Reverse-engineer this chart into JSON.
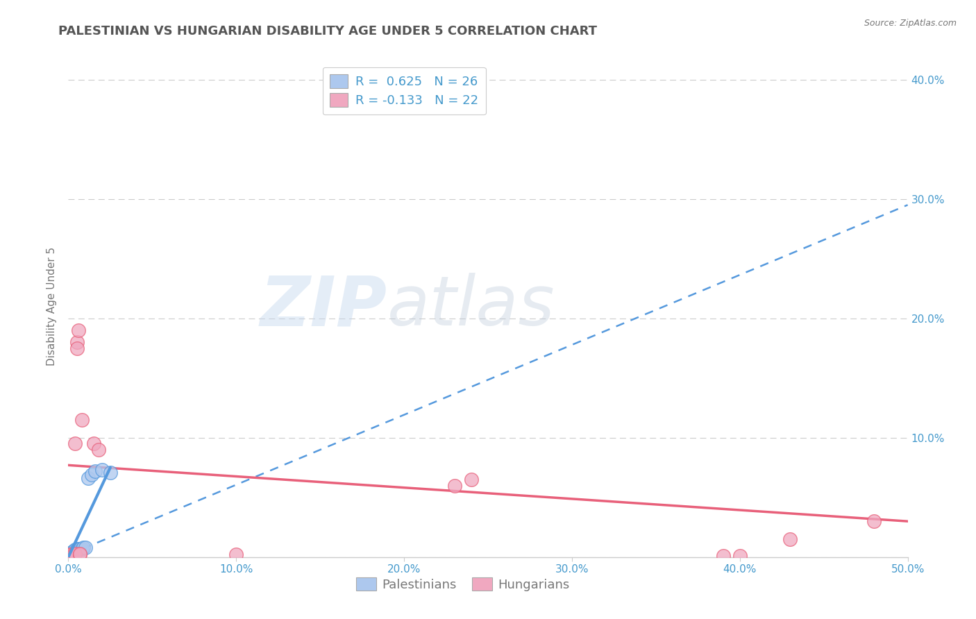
{
  "title": "PALESTINIAN VS HUNGARIAN DISABILITY AGE UNDER 5 CORRELATION CHART",
  "source": "Source: ZipAtlas.com",
  "ylabel": "Disability Age Under 5",
  "xlabel": "",
  "xlim": [
    0.0,
    0.5
  ],
  "ylim": [
    0.0,
    0.42
  ],
  "xticks": [
    0.0,
    0.1,
    0.2,
    0.3,
    0.4,
    0.5
  ],
  "yticks": [
    0.0,
    0.1,
    0.2,
    0.3,
    0.4
  ],
  "pal_color": "#adc8ee",
  "hun_color": "#f0a8c0",
  "pal_R": 0.625,
  "pal_N": 26,
  "hun_R": -0.133,
  "hun_N": 22,
  "watermark_zip": "ZIP",
  "watermark_atlas": "atlas",
  "background_color": "#ffffff",
  "grid_color": "#cccccc",
  "title_color": "#555555",
  "axis_label_color": "#777777",
  "tick_color": "#4499cc",
  "pal_line_color": "#5599dd",
  "hun_line_color": "#e8607a",
  "pal_scatter_x": [
    0.0,
    0.001,
    0.001,
    0.001,
    0.001,
    0.002,
    0.002,
    0.002,
    0.002,
    0.003,
    0.003,
    0.003,
    0.004,
    0.004,
    0.005,
    0.005,
    0.006,
    0.007,
    0.008,
    0.009,
    0.01,
    0.012,
    0.014,
    0.016,
    0.02,
    0.025
  ],
  "pal_scatter_y": [
    0.0,
    0.001,
    0.001,
    0.002,
    0.002,
    0.002,
    0.003,
    0.003,
    0.004,
    0.004,
    0.005,
    0.005,
    0.005,
    0.006,
    0.006,
    0.007,
    0.007,
    0.007,
    0.007,
    0.008,
    0.008,
    0.066,
    0.069,
    0.072,
    0.073,
    0.071
  ],
  "hun_scatter_x": [
    0.0,
    0.001,
    0.001,
    0.002,
    0.003,
    0.004,
    0.004,
    0.005,
    0.005,
    0.006,
    0.007,
    0.007,
    0.008,
    0.015,
    0.018,
    0.1,
    0.23,
    0.24,
    0.39,
    0.4,
    0.43,
    0.48
  ],
  "hun_scatter_y": [
    0.001,
    0.001,
    0.002,
    0.002,
    0.002,
    0.003,
    0.095,
    0.18,
    0.175,
    0.19,
    0.002,
    0.003,
    0.115,
    0.095,
    0.09,
    0.002,
    0.06,
    0.065,
    0.001,
    0.001,
    0.015,
    0.03
  ],
  "pal_trendline_x": [
    0.0,
    0.5
  ],
  "pal_trendline_y": [
    0.002,
    0.295
  ],
  "hun_trendline_x": [
    0.0,
    0.5
  ],
  "hun_trendline_y": [
    0.077,
    0.03
  ],
  "legend_r_color": "#4499cc",
  "legend_n_color": "#333333"
}
